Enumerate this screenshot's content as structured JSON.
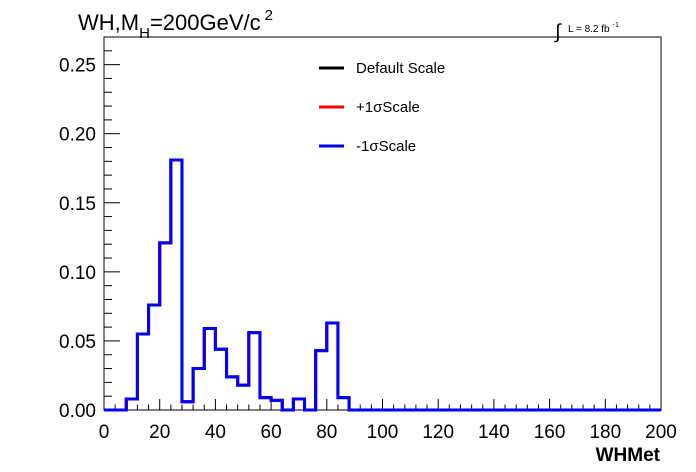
{
  "title": {
    "prefix": "WH,M",
    "subscript": "H",
    "suffix": "=200GeV/c",
    "superscript": "2"
  },
  "lumi": {
    "integral_symbol": "∫",
    "text": "L = 8.2 fb",
    "superscript": "-1"
  },
  "chart_data": {
    "type": "line",
    "title": "WH,M_H=200GeV/c^2",
    "xlabel": "WHMet",
    "ylabel": "",
    "xlim": [
      0,
      200
    ],
    "ylim": [
      0,
      0.27
    ],
    "x_ticks": [
      "0",
      "20",
      "40",
      "60",
      "80",
      "100",
      "120",
      "140",
      "160",
      "180",
      "200"
    ],
    "y_ticks": [
      "0.00",
      "0.05",
      "0.10",
      "0.15",
      "0.20",
      "0.25"
    ],
    "grid": false,
    "legend_position": "top-center",
    "histogram_style": "step",
    "bin_edges": [
      0,
      4,
      8,
      12,
      16,
      20,
      24,
      28,
      32,
      36,
      40,
      44,
      48,
      52,
      56,
      60,
      64,
      68,
      72,
      76,
      80,
      84,
      88,
      92,
      96,
      100,
      104,
      108,
      112,
      116,
      120,
      124,
      128,
      132,
      136,
      140,
      144,
      148,
      152,
      156,
      160,
      164,
      168,
      172,
      176,
      180,
      184,
      188,
      192,
      196,
      200
    ],
    "series": [
      {
        "name": "Default Scale",
        "color": "#000000",
        "values": [
          0,
          0,
          0.008,
          0.055,
          0.076,
          0.121,
          0.181,
          0.006,
          0.03,
          0.059,
          0.044,
          0.024,
          0.018,
          0.056,
          0.009,
          0.007,
          0,
          0.008,
          0,
          0.043,
          0.063,
          0.009,
          0,
          0,
          0,
          0,
          0,
          0,
          0,
          0,
          0,
          0,
          0,
          0,
          0,
          0,
          0,
          0,
          0,
          0,
          0,
          0,
          0,
          0,
          0,
          0,
          0,
          0,
          0,
          0
        ]
      },
      {
        "name": "+1σScale",
        "color": "#ff0000",
        "values": [
          0,
          0,
          0.008,
          0.055,
          0.076,
          0.121,
          0.181,
          0.006,
          0.03,
          0.059,
          0.044,
          0.024,
          0.018,
          0.056,
          0.009,
          0.007,
          0,
          0.008,
          0,
          0.043,
          0.063,
          0.009,
          0,
          0,
          0,
          0,
          0,
          0,
          0,
          0,
          0,
          0,
          0,
          0,
          0,
          0,
          0,
          0,
          0,
          0,
          0,
          0,
          0,
          0,
          0,
          0,
          0,
          0,
          0,
          0
        ]
      },
      {
        "name": "-1σScale",
        "color": "#0000ff",
        "values": [
          0,
          0,
          0.008,
          0.055,
          0.076,
          0.121,
          0.181,
          0.006,
          0.03,
          0.059,
          0.044,
          0.024,
          0.018,
          0.056,
          0.009,
          0.007,
          0,
          0.008,
          0,
          0.043,
          0.063,
          0.009,
          0,
          0,
          0,
          0,
          0,
          0,
          0,
          0,
          0,
          0,
          0,
          0,
          0,
          0,
          0,
          0,
          0,
          0,
          0,
          0,
          0,
          0,
          0,
          0,
          0,
          0,
          0,
          0
        ]
      }
    ]
  }
}
